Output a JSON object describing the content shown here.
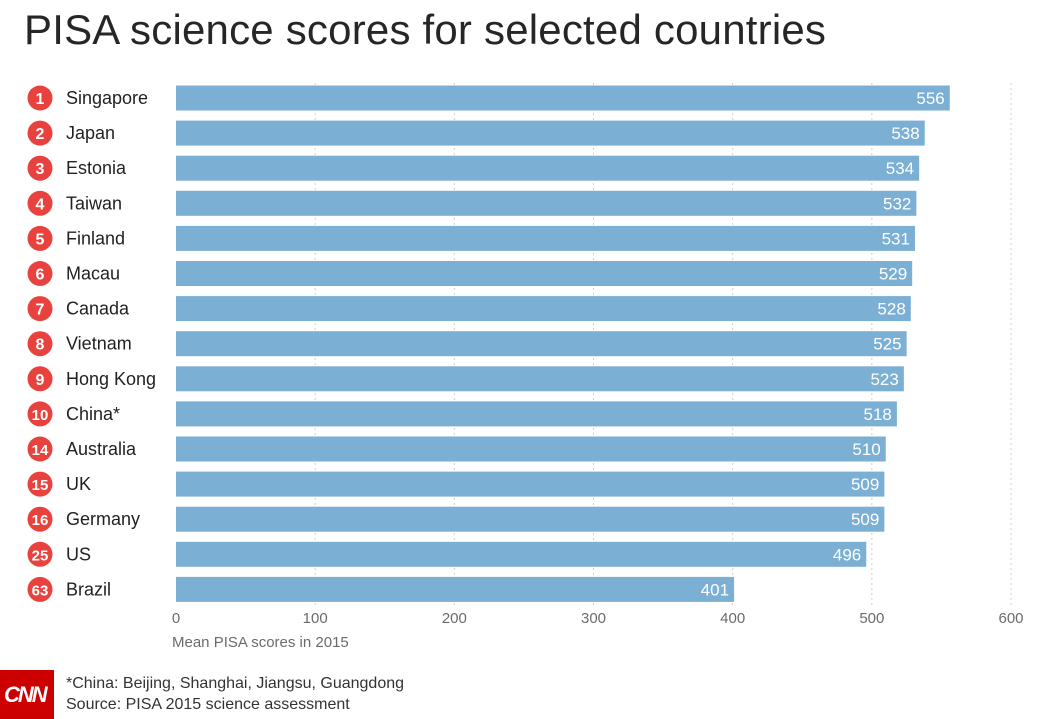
{
  "chart_data": {
    "type": "bar",
    "orientation": "horizontal",
    "title": "PISA science scores for selected countries",
    "xlabel": "Mean PISA scores in 2015",
    "xlim": [
      0,
      600
    ],
    "xticks": [
      "0",
      "100",
      "200",
      "300",
      "400",
      "500",
      "600"
    ],
    "grid": "vertical dashed",
    "bar_color": "#7bafd4",
    "rank_badge_color": "#e8423f",
    "rows": [
      {
        "rank": "1",
        "country": "Singapore",
        "value": 556,
        "label": "556"
      },
      {
        "rank": "2",
        "country": "Japan",
        "value": 538,
        "label": "538"
      },
      {
        "rank": "3",
        "country": "Estonia",
        "value": 534,
        "label": "534"
      },
      {
        "rank": "4",
        "country": "Taiwan",
        "value": 532,
        "label": "532"
      },
      {
        "rank": "5",
        "country": "Finland",
        "value": 531,
        "label": "531"
      },
      {
        "rank": "6",
        "country": "Macau",
        "value": 529,
        "label": "529"
      },
      {
        "rank": "7",
        "country": "Canada",
        "value": 528,
        "label": "528"
      },
      {
        "rank": "8",
        "country": "Vietnam",
        "value": 525,
        "label": "525"
      },
      {
        "rank": "9",
        "country": "Hong Kong",
        "value": 523,
        "label": "523"
      },
      {
        "rank": "10",
        "country": "China*",
        "value": 518,
        "label": "518"
      },
      {
        "rank": "14",
        "country": "Australia",
        "value": 510,
        "label": "510"
      },
      {
        "rank": "15",
        "country": "UK",
        "value": 509,
        "label": "509"
      },
      {
        "rank": "16",
        "country": "Germany",
        "value": 509,
        "label": "509"
      },
      {
        "rank": "25",
        "country": "US",
        "value": 496,
        "label": "496"
      },
      {
        "rank": "63",
        "country": "Brazil",
        "value": 401,
        "label": "401"
      }
    ]
  },
  "footnotes": {
    "note": "*China: Beijing, Shanghai, Jiangsu, Guangdong",
    "source": "Source: PISA 2015 science assessment"
  },
  "logo": {
    "text": "CNN",
    "color": "#cc0000"
  }
}
